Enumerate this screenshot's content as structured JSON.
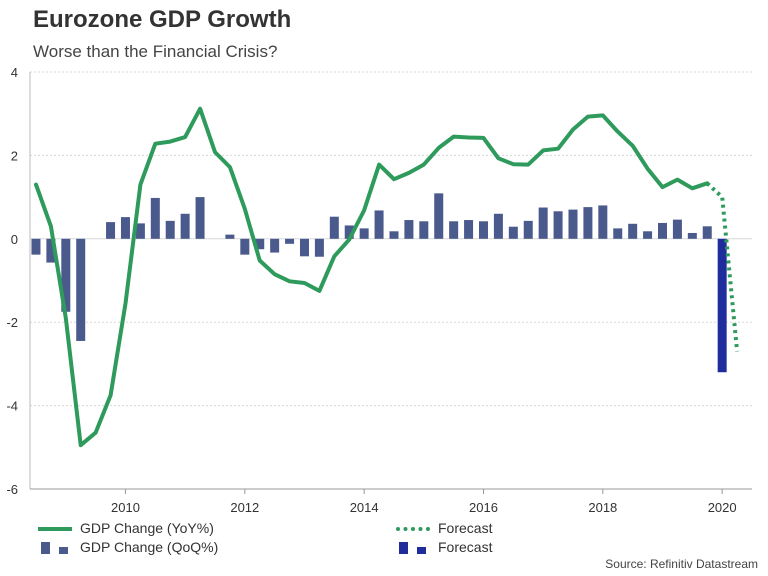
{
  "title": "Eurozone GDP Growth",
  "subtitle": "Worse than the Financial Crisis?",
  "source": "Source: Refinitiv Datastream",
  "colors": {
    "yoy_line": "#2e9a5c",
    "qoq_bar": "#4a5a8c",
    "forecast_bar": "#1f2d9c",
    "grid": "#d8d8d8"
  },
  "legend": {
    "yoy": "GDP Change (YoY%)",
    "yoy_forecast": "Forecast",
    "qoq": "GDP Change (QoQ%)",
    "qoq_forecast": "Forecast"
  },
  "chart_data": {
    "type": "bar+line",
    "title": "Eurozone GDP Growth",
    "subtitle": "Worse than the Financial Crisis?",
    "ylim": [
      -6,
      4
    ],
    "yticks": [
      4,
      2,
      0,
      -2,
      -4,
      -6
    ],
    "xlim": [
      2008.4,
      2020.5
    ],
    "xticks": [
      2010,
      2012,
      2014,
      2016,
      2018,
      2020
    ],
    "grid": "horizontal",
    "legend_position": "bottom",
    "series": [
      {
        "name": "GDP Change (YoY%)",
        "type": "line",
        "x": [
          2008.5,
          2008.75,
          2009.0,
          2009.25,
          2009.5,
          2009.75,
          2010.0,
          2010.25,
          2010.5,
          2010.75,
          2011.0,
          2011.25,
          2011.5,
          2011.75,
          2012.0,
          2012.25,
          2012.5,
          2012.75,
          2013.0,
          2013.25,
          2013.5,
          2013.75,
          2014.0,
          2014.25,
          2014.5,
          2014.75,
          2015.0,
          2015.25,
          2015.5,
          2015.75,
          2016.0,
          2016.25,
          2016.5,
          2016.75,
          2017.0,
          2017.25,
          2017.5,
          2017.75,
          2018.0,
          2018.25,
          2018.5,
          2018.75,
          2019.0,
          2019.25,
          2019.5,
          2019.75
        ],
        "values": [
          1.3,
          0.3,
          -1.9,
          -4.95,
          -4.65,
          -3.75,
          -1.55,
          1.3,
          2.28,
          2.33,
          2.44,
          3.12,
          2.08,
          1.72,
          0.72,
          -0.52,
          -0.85,
          -1.02,
          -1.06,
          -1.25,
          -0.42,
          -0.02,
          0.68,
          1.78,
          1.43,
          1.58,
          1.78,
          2.18,
          2.45,
          2.43,
          2.42,
          1.93,
          1.79,
          1.78,
          2.12,
          2.16,
          2.62,
          2.93,
          2.96,
          2.57,
          2.23,
          1.68,
          1.24,
          1.42,
          1.21,
          1.33
        ]
      },
      {
        "name": "Forecast",
        "type": "line-dotted",
        "x": [
          2019.75,
          2020.0,
          2020.25
        ],
        "values": [
          1.33,
          1.0,
          -2.7
        ]
      },
      {
        "name": "GDP Change (QoQ%)",
        "type": "bar",
        "x": [
          2008.5,
          2008.75,
          2009.0,
          2009.25,
          2009.5,
          2009.75,
          2010.0,
          2010.25,
          2010.5,
          2010.75,
          2011.0,
          2011.25,
          2011.5,
          2011.75,
          2012.0,
          2012.25,
          2012.5,
          2012.75,
          2013.0,
          2013.25,
          2013.5,
          2013.75,
          2014.0,
          2014.25,
          2014.5,
          2014.75,
          2015.0,
          2015.25,
          2015.5,
          2015.75,
          2016.0,
          2016.25,
          2016.5,
          2016.75,
          2017.0,
          2017.25,
          2017.5,
          2017.75,
          2018.0,
          2018.25,
          2018.5,
          2018.75,
          2019.0,
          2019.25,
          2019.5,
          2019.75
        ],
        "values": [
          -0.38,
          -0.57,
          -1.75,
          -2.45,
          0.0,
          0.4,
          0.52,
          0.37,
          0.98,
          0.43,
          0.6,
          1.0,
          0.0,
          0.1,
          -0.38,
          -0.25,
          -0.33,
          -0.12,
          -0.42,
          -0.43,
          0.53,
          0.32,
          0.25,
          0.68,
          0.18,
          0.45,
          0.42,
          1.09,
          0.42,
          0.45,
          0.42,
          0.6,
          0.29,
          0.43,
          0.75,
          0.66,
          0.7,
          0.76,
          0.8,
          0.25,
          0.36,
          0.18,
          0.38,
          0.46,
          0.14,
          0.3
        ]
      },
      {
        "name": "Forecast",
        "type": "bar-forecast",
        "x": [
          2020.0
        ],
        "values": [
          -3.2
        ]
      }
    ]
  }
}
